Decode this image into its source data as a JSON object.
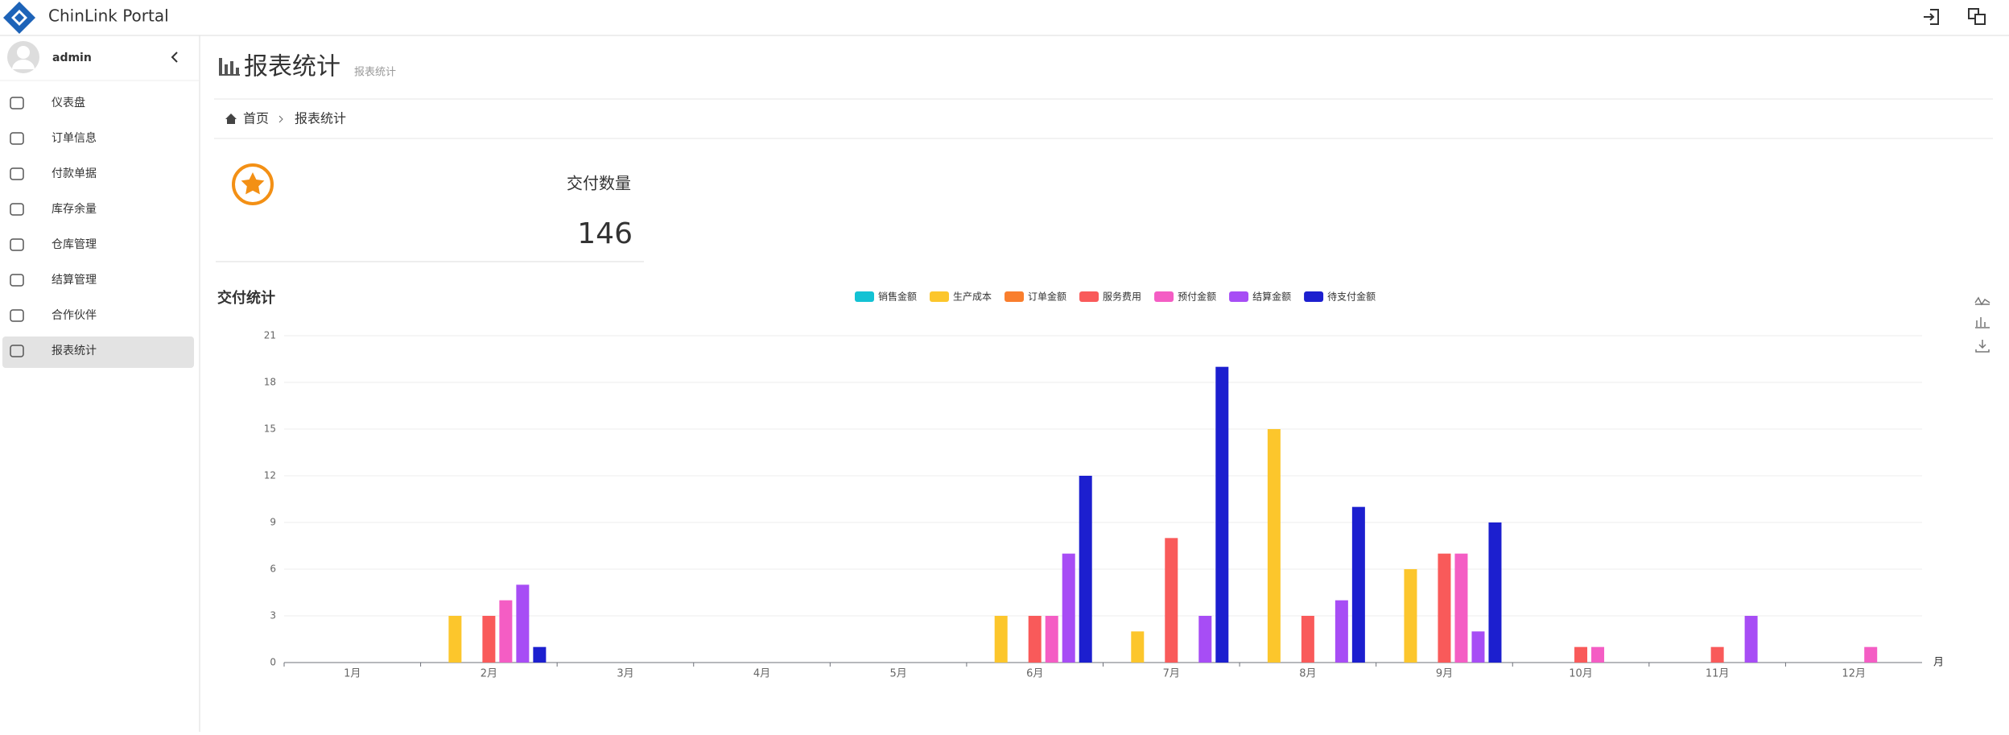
{
  "header": {
    "brand": "ChinLink Portal"
  },
  "sidebar": {
    "user": "admin",
    "menu": [
      "仪表盘",
      "订单信息",
      "付款单据",
      "库存余量",
      "仓库管理",
      "结算管理",
      "合作伙伴",
      "报表统计"
    ]
  },
  "page": {
    "title": "报表统计",
    "subtitle": "报表统计",
    "breadcrumb": [
      "首页",
      "报表统计"
    ]
  },
  "card": {
    "label": "交付数量",
    "value": 146
  },
  "chart_data": {
    "type": "bar",
    "title": "交付统计",
    "x_label": "月",
    "categories": [
      "1月",
      "2月",
      "3月",
      "4月",
      "5月",
      "6月",
      "7月",
      "8月",
      "9月",
      "10月",
      "11月",
      "12月"
    ],
    "series": [
      {
        "name": "销售金额",
        "color": "#13c2d4",
        "values": [
          0,
          0,
          0,
          0,
          0,
          0,
          0,
          0,
          0,
          0,
          0,
          0
        ]
      },
      {
        "name": "生产成本",
        "color": "#fcc62c",
        "values": [
          0,
          3,
          0,
          0,
          0,
          3,
          2,
          15,
          6,
          0,
          0,
          0
        ]
      },
      {
        "name": "订单金额",
        "color": "#f97e2d",
        "values": [
          0,
          0,
          0,
          0,
          0,
          0,
          0,
          0,
          0,
          0,
          0,
          0
        ]
      },
      {
        "name": "服务费用",
        "color": "#f95a5a",
        "values": [
          0,
          3,
          0,
          0,
          0,
          3,
          8,
          3,
          7,
          1,
          1,
          0
        ]
      },
      {
        "name": "预付金额",
        "color": "#f45dc4",
        "values": [
          0,
          4,
          0,
          0,
          0,
          3,
          0,
          0,
          7,
          1,
          0,
          1
        ]
      },
      {
        "name": "结算金额",
        "color": "#a74df5",
        "values": [
          0,
          5,
          0,
          0,
          0,
          7,
          3,
          4,
          2,
          0,
          3,
          0
        ]
      },
      {
        "name": "待支付金额",
        "color": "#1c1fcf",
        "values": [
          0,
          1,
          0,
          0,
          0,
          12,
          19,
          10,
          9,
          0,
          0,
          0
        ]
      }
    ],
    "ylim": [
      0,
      21
    ],
    "yticks": [
      0,
      3,
      6,
      9,
      12,
      15,
      18,
      21
    ],
    "grid": true,
    "legend": "top"
  }
}
